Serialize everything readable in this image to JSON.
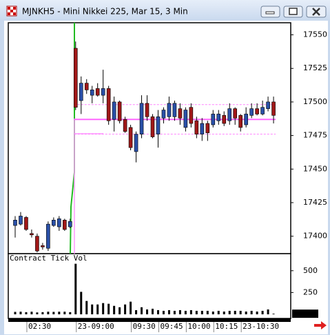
{
  "window": {
    "title": "MJNKH5 - Mini Nikkei 225, Mar 15, 3 Min"
  },
  "chart_data": {
    "type": "candlestick",
    "categories": [
      null,
      null,
      "02:30",
      null,
      null,
      null,
      null,
      null,
      null,
      null,
      null,
      "23-09:00",
      null,
      null,
      null,
      null,
      null,
      null,
      null,
      null,
      null,
      "09:30",
      null,
      null,
      null,
      null,
      "09:45",
      null,
      null,
      null,
      null,
      "10:00",
      null,
      null,
      null,
      null,
      "10:15",
      null,
      null,
      null,
      null,
      "23-10:30",
      null,
      null,
      null,
      null,
      null,
      null
    ],
    "open": [
      17408,
      17409,
      17414,
      17402,
      17400,
      17393,
      17391,
      17408,
      17407,
      17412,
      17407,
      17540,
      17501,
      17514,
      17505,
      17510,
      17505,
      17510,
      17487,
      17500,
      17487,
      17481,
      17463,
      17476,
      17499,
      17489,
      17476,
      17488,
      17489,
      17489,
      17495,
      17481,
      17496,
      17486,
      17476,
      17484,
      17483,
      17486,
      17490,
      17486,
      17495,
      17490,
      17483,
      17490,
      17495,
      17491,
      17495,
      17500
    ],
    "high": [
      17415,
      17418,
      17415,
      17405,
      17402,
      17395,
      17411,
      17414,
      17415,
      17413,
      17413,
      17545,
      17519,
      17517,
      17512,
      17514,
      17524,
      17512,
      17504,
      17501,
      17489,
      17483,
      17478,
      17505,
      17505,
      17491,
      17494,
      17496,
      17504,
      17501,
      17499,
      17496,
      17499,
      17489,
      17488,
      17486,
      17494,
      17494,
      17493,
      17499,
      17496,
      17491,
      17496,
      17499,
      17499,
      17501,
      17504,
      17504
    ],
    "low": [
      17399,
      17408,
      17404,
      17399,
      17388,
      17390,
      17389,
      17407,
      17404,
      17404,
      17406,
      17494,
      17491,
      17506,
      17499,
      17504,
      17499,
      17483,
      17478,
      17484,
      17477,
      17464,
      17455,
      17473,
      17486,
      17473,
      17466,
      17484,
      17486,
      17486,
      17483,
      17478,
      17481,
      17473,
      17471,
      17471,
      17481,
      17483,
      17482,
      17483,
      17483,
      17478,
      17481,
      17488,
      17490,
      17490,
      17493,
      17484
    ],
    "close": [
      17412,
      17415,
      17405,
      17401,
      17389,
      17392,
      17409,
      17412,
      17413,
      17405,
      17411,
      17496,
      17514,
      17509,
      17509,
      17505,
      17510,
      17486,
      17500,
      17486,
      17478,
      17466,
      17476,
      17499,
      17489,
      17474,
      17489,
      17494,
      17499,
      17499,
      17488,
      17494,
      17484,
      17476,
      17484,
      17477,
      17491,
      17491,
      17484,
      17495,
      17488,
      17481,
      17491,
      17495,
      17491,
      17496,
      17500,
      17490
    ],
    "up_color": "#2a50a8",
    "down_color": "#a01818",
    "ylim": [
      17387,
      17559
    ],
    "yticks": [
      17400,
      17425,
      17450,
      17475,
      17500,
      17525,
      17550
    ],
    "reference_lines": [
      {
        "value": 17498,
        "style": "dashed",
        "color": "#ff80ff"
      },
      {
        "value": 17487,
        "style": "solid",
        "color": "#ff66ff"
      },
      {
        "value": 17476,
        "style": "dashed",
        "color": "#ff80ff"
      }
    ],
    "volume": {
      "label": "Contract Tick Vol",
      "color": "#000000",
      "values": [
        28,
        30,
        25,
        30,
        22,
        25,
        30,
        28,
        30,
        30,
        25,
        580,
        258,
        153,
        113,
        113,
        129,
        121,
        97,
        81,
        113,
        145,
        48,
        81,
        56,
        64,
        48,
        40,
        48,
        40,
        48,
        40,
        48,
        40,
        40,
        40,
        32,
        40,
        32,
        40,
        40,
        40,
        32,
        40,
        32,
        40,
        56,
        7
      ],
      "ylim": [
        0,
        680
      ],
      "yticks": [
        250,
        500
      ]
    }
  }
}
